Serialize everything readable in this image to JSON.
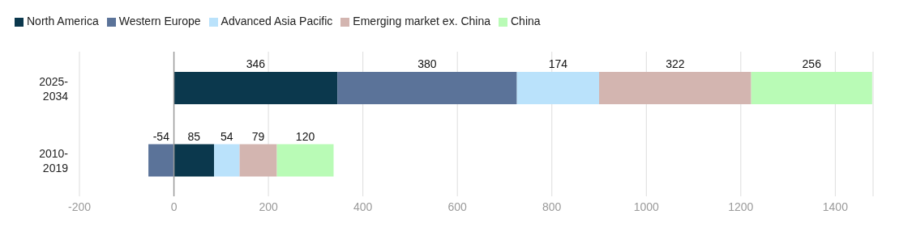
{
  "chart_data": {
    "type": "bar",
    "orientation": "horizontal",
    "stacked": true,
    "categories": [
      "2025-2034",
      "2010-2019"
    ],
    "series": [
      {
        "name": "North America",
        "color": "#0b384d",
        "values": [
          346,
          85
        ]
      },
      {
        "name": "Western Europe",
        "color": "#5b7399",
        "values": [
          380,
          -54
        ]
      },
      {
        "name": "Advanced Asia Pacific",
        "color": "#bae2fb",
        "values": [
          174,
          54
        ]
      },
      {
        "name": "Emerging market ex. China",
        "color": "#d3b5b0",
        "values": [
          322,
          79
        ]
      },
      {
        "name": "China",
        "color": "#b9fbb6",
        "values": [
          256,
          120
        ]
      }
    ],
    "xlim": [
      -200,
      1480
    ],
    "xticks": [
      -200,
      0,
      200,
      400,
      600,
      800,
      1000,
      1200,
      1400
    ],
    "grid": "x",
    "legend": "top left",
    "data_labels": true,
    "ref_lines": [
      {
        "axis": "x",
        "value": 0,
        "color": "#9a9a9a"
      }
    ]
  }
}
